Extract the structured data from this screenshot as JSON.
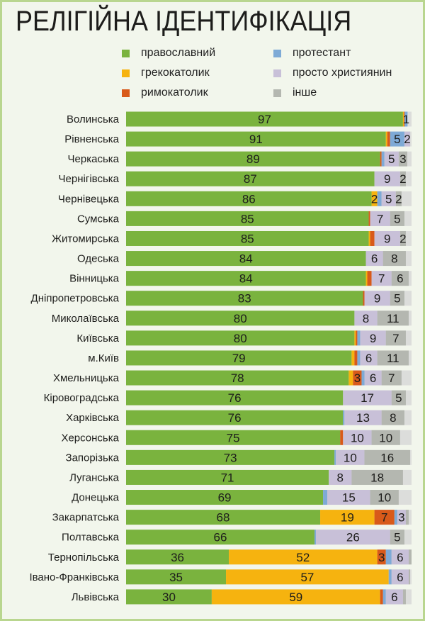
{
  "chart_data": {
    "type": "bar",
    "orientation": "horizontal",
    "stacked": true,
    "title": "РЕЛІГІЙНА ІДЕНТИФІКАЦІЯ",
    "legend_position": "top",
    "xlim": [
      0,
      100
    ],
    "grid": false,
    "series": [
      {
        "name": "православний",
        "color": "#7ab33e"
      },
      {
        "name": "грекокатолик",
        "color": "#f6b30f"
      },
      {
        "name": "римокатолик",
        "color": "#d85a1a"
      },
      {
        "name": "протестант",
        "color": "#7eaad6"
      },
      {
        "name": "просто християнин",
        "color": "#c8c0d8"
      },
      {
        "name": "інше",
        "color": "#b4b7b0"
      }
    ],
    "track_color": "#dcdddb",
    "categories": [
      "Волинська",
      "Рівненська",
      "Черкаська",
      "Чернігівська",
      "Чернівецька",
      "Сумська",
      "Житомирська",
      "Одеська",
      "Вінницька",
      "Дніпропетровська",
      "Миколаївська",
      "Київська",
      "м.Київ",
      "Хмельницька",
      "Кіровоградська",
      "Харківська",
      "Херсонська",
      "Запорізька",
      "Луганська",
      "Донецька",
      "Закарпатська",
      "Полтавська",
      "Тернопільська",
      "Івано-Франківська",
      "Львівська"
    ],
    "values": [
      [
        97,
        0.3,
        0.3,
        1,
        0,
        0
      ],
      [
        91,
        0.5,
        1,
        5,
        2,
        0
      ],
      [
        89,
        0,
        0.5,
        1,
        5,
        3
      ],
      [
        87,
        0,
        0,
        0,
        9,
        2
      ],
      [
        86,
        2,
        0,
        1.5,
        5,
        2
      ],
      [
        85,
        0,
        0.5,
        0,
        7,
        5
      ],
      [
        85,
        0.5,
        1.5,
        0,
        9,
        2
      ],
      [
        84,
        0,
        0,
        0,
        6,
        8
      ],
      [
        84,
        0.5,
        1.5,
        0,
        7,
        6
      ],
      [
        83,
        0,
        0.5,
        0,
        9,
        5
      ],
      [
        80,
        0,
        0,
        0,
        8,
        11
      ],
      [
        80,
        0.5,
        0.5,
        1,
        9,
        7
      ],
      [
        79,
        1,
        1,
        1,
        6,
        11
      ],
      [
        78,
        1.5,
        3,
        1,
        6,
        7
      ],
      [
        76,
        0,
        0,
        0,
        17,
        5
      ],
      [
        76,
        0,
        0,
        0.5,
        13,
        8
      ],
      [
        75,
        0,
        1,
        0,
        10,
        10
      ],
      [
        73,
        0,
        0,
        0.5,
        10,
        16
      ],
      [
        71,
        0,
        0,
        0,
        8,
        18
      ],
      [
        69,
        0,
        0,
        1.5,
        15,
        10
      ],
      [
        68,
        19,
        7,
        1,
        3,
        1
      ],
      [
        66,
        0,
        0,
        0.5,
        26,
        5
      ],
      [
        36,
        52,
        3,
        2,
        6,
        1
      ],
      [
        35,
        57,
        0,
        1,
        6,
        0.5
      ],
      [
        30,
        59,
        1,
        1,
        6,
        1
      ]
    ],
    "labels": [
      [
        "97",
        "",
        "",
        "1",
        "",
        ""
      ],
      [
        "91",
        "",
        "",
        "5",
        "2",
        ""
      ],
      [
        "89",
        "",
        "",
        "",
        "5",
        "3"
      ],
      [
        "87",
        "",
        "",
        "",
        "9",
        "2"
      ],
      [
        "86",
        "2",
        "",
        "",
        "5",
        "2"
      ],
      [
        "85",
        "",
        "",
        "",
        "7",
        "5"
      ],
      [
        "85",
        "",
        "",
        "",
        "9",
        "2"
      ],
      [
        "84",
        "",
        "",
        "",
        "6",
        "8"
      ],
      [
        "84",
        "",
        "",
        "",
        "7",
        "6"
      ],
      [
        "83",
        "",
        "",
        "",
        "9",
        "5"
      ],
      [
        "80",
        "",
        "",
        "",
        "8",
        "11"
      ],
      [
        "80",
        "",
        "",
        "",
        "9",
        "7"
      ],
      [
        "79",
        "",
        "",
        "",
        "6",
        "11"
      ],
      [
        "78",
        "",
        "3",
        "",
        "6",
        "7"
      ],
      [
        "76",
        "",
        "",
        "",
        "17",
        "5"
      ],
      [
        "76",
        "",
        "",
        "",
        "13",
        "8"
      ],
      [
        "75",
        "",
        "",
        "",
        "10",
        "10"
      ],
      [
        "73",
        "",
        "",
        "",
        "10",
        "16"
      ],
      [
        "71",
        "",
        "",
        "",
        "8",
        "18"
      ],
      [
        "69",
        "",
        "",
        "",
        "15",
        "10"
      ],
      [
        "68",
        "19",
        "7",
        "",
        "3",
        ""
      ],
      [
        "66",
        "",
        "",
        "",
        "26",
        "5"
      ],
      [
        "36",
        "52",
        "3",
        "",
        "6",
        ""
      ],
      [
        "35",
        "57",
        "",
        "",
        "6",
        ""
      ],
      [
        "30",
        "59",
        "",
        "",
        "6",
        ""
      ]
    ]
  }
}
